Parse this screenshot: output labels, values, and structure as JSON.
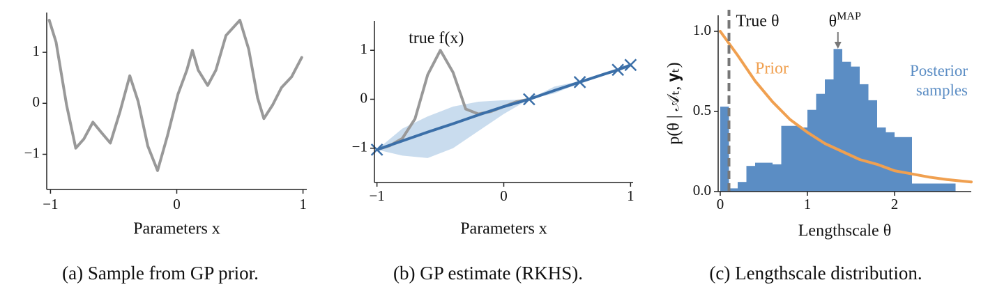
{
  "chart_data": [
    {
      "type": "line",
      "caption": "(a) Sample from GP prior.",
      "xlabel": "Parameters x",
      "xlim": [
        -1.03,
        1.03
      ],
      "ylim": [
        -1.69,
        1.78
      ],
      "xticks": [
        {
          "value": -1,
          "label": "−1"
        },
        0,
        1
      ],
      "yticks": [
        {
          "value": -1,
          "label": "−1"
        },
        0,
        1
      ],
      "series": [
        {
          "color": "#999999",
          "x": [
            -1.01,
            -0.956,
            -0.873,
            -0.8,
            -0.736,
            -0.664,
            -0.598,
            -0.526,
            -0.449,
            -0.372,
            -0.306,
            -0.229,
            -0.152,
            -0.074,
            0.01,
            0.08,
            0.124,
            0.17,
            0.245,
            0.31,
            0.39,
            0.5,
            0.57,
            0.64,
            0.69,
            0.76,
            0.83,
            0.91,
            0.99
          ],
          "values": [
            1.63,
            1.2,
            -0.03,
            -0.88,
            -0.7,
            -0.37,
            -0.57,
            -0.78,
            -0.16,
            0.54,
            0.04,
            -0.84,
            -1.32,
            -0.64,
            0.18,
            0.65,
            1.04,
            0.65,
            0.35,
            0.65,
            1.33,
            1.63,
            1.06,
            0.11,
            -0.3,
            -0.03,
            0.31,
            0.52,
            0.9
          ]
        }
      ]
    },
    {
      "type": "line",
      "caption": "(b) GP estimate (RKHS).",
      "xlabel": "Parameters x",
      "xlim": [
        -1.02,
        1.02
      ],
      "ylim": [
        -1.7,
        1.6
      ],
      "xticks": [
        {
          "value": -1,
          "label": "−1"
        },
        0,
        1
      ],
      "yticks": [
        {
          "value": -1,
          "label": "−1"
        },
        0,
        1
      ],
      "band": {
        "color": "#c9dcee",
        "x": [
          -1,
          -0.8,
          -0.6,
          -0.4,
          -0.2,
          0,
          0.2,
          0.4,
          0.6,
          0.8,
          0.9,
          1
        ],
        "lower": [
          -1.03,
          -1.15,
          -1.2,
          -1.0,
          -0.65,
          -0.3,
          0,
          0.12,
          0.33,
          0.5,
          0.6,
          0.7
        ],
        "upper": [
          -1.03,
          -0.6,
          -0.35,
          -0.15,
          -0.05,
          -0.02,
          0,
          0.26,
          0.37,
          0.55,
          0.6,
          0.7
        ]
      },
      "series": [
        {
          "name": "true f(x)",
          "color": "#999999",
          "x": [
            -1,
            -0.9,
            -0.8,
            -0.7,
            -0.6,
            -0.5,
            -0.4,
            -0.3,
            -0.2,
            -0.1,
            0,
            0.1,
            0.2
          ],
          "values": [
            -1.03,
            -0.95,
            -0.8,
            -0.4,
            0.5,
            1.0,
            0.55,
            -0.2,
            -0.3,
            -0.25,
            -0.15,
            -0.05,
            0
          ]
        },
        {
          "color": "#3b6fa8",
          "x": [
            -1,
            -0.8,
            -0.6,
            -0.4,
            -0.2,
            0,
            0.2,
            0.4,
            0.6,
            0.8,
            0.9,
            1
          ],
          "values": [
            -1.03,
            -0.85,
            -0.67,
            -0.5,
            -0.32,
            -0.15,
            0,
            0.18,
            0.35,
            0.52,
            0.6,
            0.7
          ]
        }
      ],
      "points": {
        "color": "#3b6fa8",
        "x": [
          -1,
          0.2,
          0.6,
          0.9,
          1.0
        ],
        "values": [
          -1.03,
          0,
          0.35,
          0.6,
          0.7
        ]
      }
    },
    {
      "type": "histogram",
      "caption": "(c) Lengthscale distribution.",
      "xlabel": "Lengthscale θ",
      "ylabel": "p(θ | 𝒜ₜ, 𝐲ₜ)",
      "xlim": [
        -0.024,
        2.88
      ],
      "ylim": [
        0,
        1.1
      ],
      "xticks": [
        0,
        1,
        2
      ],
      "yticks": [
        {
          "value": 0,
          "label": "0.0"
        },
        {
          "value": 0.5,
          "label": "0.5"
        },
        {
          "value": 1,
          "label": "1.0"
        }
      ],
      "name": "Posterior samples",
      "color": "#5b8dc4",
      "bins": [
        0,
        0.1,
        0.2,
        0.3,
        0.4,
        0.5,
        0.6,
        0.7,
        0.8,
        0.9,
        1.0,
        1.1,
        1.2,
        1.3,
        1.4,
        1.5,
        1.6,
        1.7,
        1.8,
        1.9,
        2.0,
        2.1,
        2.2,
        2.3,
        2.4,
        2.5,
        2.6,
        2.7
      ],
      "values": [
        0.53,
        0.02,
        0.06,
        0.16,
        0.18,
        0.18,
        0.17,
        0.41,
        0.41,
        0.4,
        0.51,
        0.61,
        0.7,
        0.89,
        0.81,
        0.78,
        0.67,
        0.57,
        0.4,
        0.37,
        0.34,
        0.34,
        0.05,
        0.05,
        0.05,
        0.05,
        0.05
      ],
      "series": [
        {
          "name": "Prior",
          "color": "#f0a050",
          "x": [
            0,
            0.2,
            0.4,
            0.6,
            0.8,
            1.0,
            1.2,
            1.4,
            1.6,
            1.8,
            2.0,
            2.2,
            2.4,
            2.6,
            2.88
          ],
          "values": [
            1.0,
            0.85,
            0.69,
            0.56,
            0.45,
            0.37,
            0.3,
            0.25,
            0.2,
            0.17,
            0.13,
            0.11,
            0.09,
            0.075,
            0.06
          ]
        }
      ],
      "vline": {
        "label": "True θ",
        "x": 0.1,
        "color": "#777777"
      },
      "map_annotation": {
        "label": "θ",
        "superscript": "MAP",
        "x": 1.35
      }
    }
  ]
}
